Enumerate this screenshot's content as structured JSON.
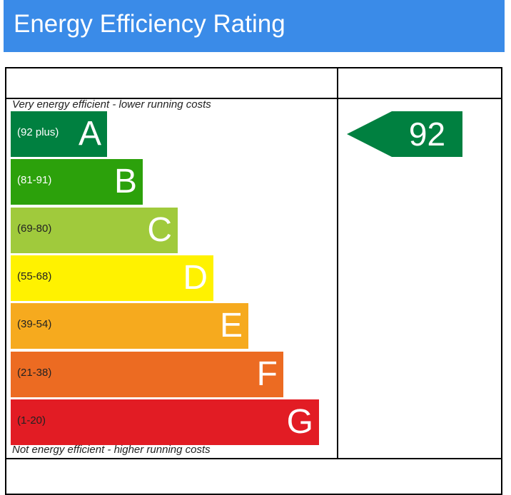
{
  "header": {
    "title": "Energy Efficiency Rating",
    "background": "#3a8be8"
  },
  "chart_data": {
    "type": "bar",
    "title": "Energy Efficiency Rating",
    "top_caption": "Very energy efficient - lower running costs",
    "bottom_caption": "Not energy efficient - higher running costs",
    "categories": [
      "A",
      "B",
      "C",
      "D",
      "E",
      "F",
      "G"
    ],
    "bands": [
      {
        "letter": "A",
        "range": "(92 plus)",
        "color": "#008040",
        "range_color": "#ffffff"
      },
      {
        "letter": "B",
        "range": "(81-91)",
        "color": "#2ca10b",
        "range_color": "#ffffff"
      },
      {
        "letter": "C",
        "range": "(69-80)",
        "color": "#a0ca3c",
        "range_color": "#222222"
      },
      {
        "letter": "D",
        "range": "(55-68)",
        "color": "#fff200",
        "range_color": "#222222"
      },
      {
        "letter": "E",
        "range": "(39-54)",
        "color": "#f6aa1e",
        "range_color": "#222222"
      },
      {
        "letter": "F",
        "range": "(21-38)",
        "color": "#ec6b22",
        "range_color": "#222222"
      },
      {
        "letter": "G",
        "range": "(1-20)",
        "color": "#e21c24",
        "range_color": "#222222"
      }
    ],
    "current_rating": {
      "value": "92",
      "band": "A",
      "color": "#008040"
    }
  }
}
